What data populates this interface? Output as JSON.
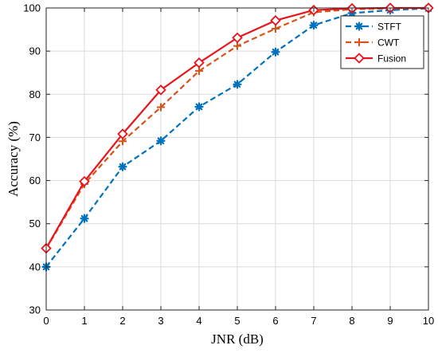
{
  "chart_data": {
    "type": "line",
    "xlabel": "JNR (dB)",
    "ylabel": "Accuracy (%)",
    "xlim": [
      0,
      10
    ],
    "ylim": [
      30,
      100
    ],
    "xticks": [
      0,
      1,
      2,
      3,
      4,
      5,
      6,
      7,
      8,
      9,
      10
    ],
    "yticks": [
      30,
      40,
      50,
      60,
      70,
      80,
      90,
      100
    ],
    "grid": true,
    "legend_position": "top-right",
    "x": [
      0,
      1,
      2,
      3,
      4,
      5,
      6,
      7,
      8,
      9,
      10
    ],
    "series": [
      {
        "name": "STFT",
        "values": [
          40.0,
          51.2,
          63.2,
          69.2,
          77.1,
          82.3,
          89.8,
          96.0,
          98.8,
          99.5,
          99.9
        ],
        "color": "#0072BD",
        "line_style": "dashed",
        "marker": "asterisk"
      },
      {
        "name": "CWT",
        "values": [
          44.2,
          59.2,
          69.1,
          77.0,
          85.4,
          91.2,
          95.2,
          99.0,
          99.7,
          99.9,
          100.0
        ],
        "color": "#D95319",
        "line_style": "dashed",
        "marker": "plus"
      },
      {
        "name": "Fusion",
        "values": [
          44.3,
          59.8,
          70.8,
          81.0,
          87.3,
          93.1,
          97.1,
          99.5,
          99.9,
          100.0,
          100.0
        ],
        "color": "#E8141B",
        "line_style": "solid",
        "marker": "diamond"
      }
    ]
  }
}
